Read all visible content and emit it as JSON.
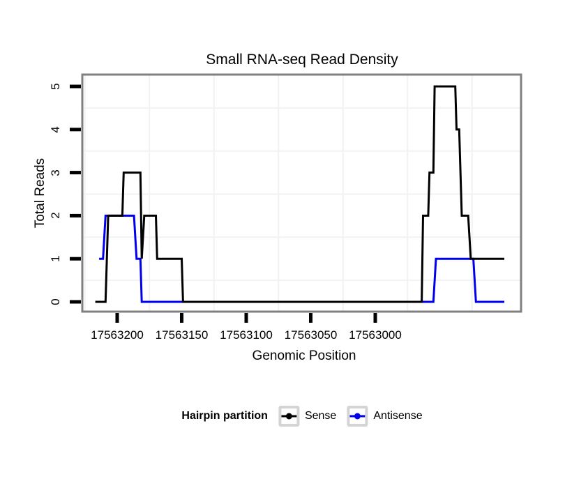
{
  "title": "Small RNA-seq Read Density",
  "axes": {
    "x": {
      "label": "Genomic Position",
      "tick_labels": [
        "17563200",
        "17563150",
        "17563100",
        "17563050",
        "17563000"
      ],
      "tick_values": [
        17563200,
        17563150,
        17563100,
        17563050,
        17563000
      ],
      "reversed": true
    },
    "y": {
      "label": "Total Reads",
      "tick_labels": [
        "0",
        "1",
        "2",
        "3",
        "4",
        "5"
      ],
      "tick_values": [
        0,
        1,
        2,
        3,
        4,
        5
      ]
    }
  },
  "legend": {
    "title": "Hairpin partition",
    "items": [
      {
        "label": "Sense",
        "color": "#000000"
      },
      {
        "label": "Antisense",
        "color": "#0000EE"
      }
    ]
  },
  "style_colors": {
    "panel_border": "#808080",
    "grid_minor": "#f2f2f2",
    "tick_mark": "#000000",
    "legend_key_border": "#d4d4d4",
    "background": "#ffffff"
  },
  "chart_data": {
    "type": "line",
    "title": "Small RNA-seq Read Density",
    "xlabel": "Genomic Position",
    "ylabel": "Total Reads",
    "x_axis_reversed": true,
    "x_ticks": [
      17563200,
      17563150,
      17563100,
      17563050,
      17563000
    ],
    "y_ticks": [
      0,
      1,
      2,
      3,
      4,
      5
    ],
    "ylim": [
      0,
      5
    ],
    "xlim_left_to_right": [
      17563227,
      17562887
    ],
    "grid": "minor gridlines only (half-way between ticks)",
    "legend_position": "bottom",
    "legend_title": "Hairpin partition",
    "series": [
      {
        "name": "Sense",
        "color": "#000000",
        "points": [
          [
            17563217,
            0
          ],
          [
            17563209,
            0
          ],
          [
            17563207,
            2
          ],
          [
            17563196,
            2
          ],
          [
            17563195,
            3
          ],
          [
            17563182,
            3
          ],
          [
            17563181,
            1
          ],
          [
            17563179,
            2
          ],
          [
            17563170,
            2
          ],
          [
            17563169,
            1
          ],
          [
            17563150,
            1
          ],
          [
            17563149,
            0
          ],
          [
            17562964,
            0
          ],
          [
            17562963,
            2
          ],
          [
            17562959,
            2
          ],
          [
            17562958,
            3
          ],
          [
            17562955,
            3
          ],
          [
            17562954,
            5
          ],
          [
            17562938,
            5
          ],
          [
            17562937,
            4
          ],
          [
            17562935,
            4
          ],
          [
            17562933,
            2
          ],
          [
            17562928,
            2
          ],
          [
            17562926,
            1
          ],
          [
            17562900,
            1
          ]
        ]
      },
      {
        "name": "Antisense",
        "color": "#0000EE",
        "points": [
          [
            17563214,
            1
          ],
          [
            17563211,
            1
          ],
          [
            17563209,
            2
          ],
          [
            17563187,
            2
          ],
          [
            17563185,
            1
          ],
          [
            17563182,
            1
          ],
          [
            17563181,
            0
          ],
          [
            17562955,
            0
          ],
          [
            17562953,
            1
          ],
          [
            17562924,
            1
          ],
          [
            17562922,
            0
          ],
          [
            17562900,
            0
          ]
        ]
      }
    ]
  }
}
